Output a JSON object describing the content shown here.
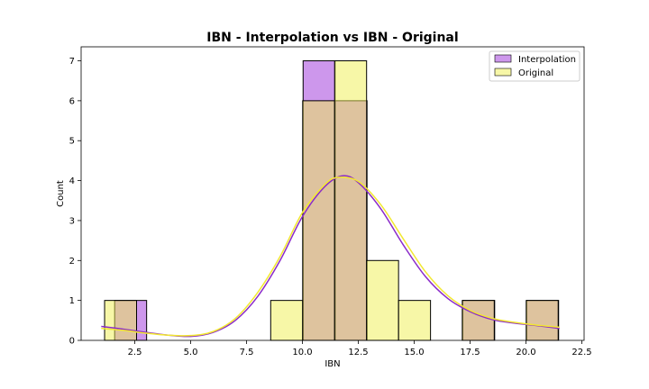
{
  "chart_data": {
    "type": "histogram",
    "title": "IBN - Interpolation vs IBN - Original",
    "xlabel": "IBN",
    "ylabel": "Count",
    "xlim": [
      0.1,
      22.6
    ],
    "ylim": [
      0,
      7.35
    ],
    "x_ticks": [
      2.5,
      5.0,
      7.5,
      10.0,
      12.5,
      15.0,
      17.5,
      20.0,
      22.5
    ],
    "y_ticks": [
      0,
      1,
      2,
      3,
      4,
      5,
      6,
      7
    ],
    "grid": false,
    "legend_position": "top-right",
    "series": [
      {
        "name": "Interpolation",
        "color": "#9b30d9",
        "kde_color": "#8a2bc9",
        "bins": [
          {
            "x0": 1.6,
            "x1": 3.03,
            "count": 1
          },
          {
            "x0": 10.03,
            "x1": 11.46,
            "count": 7
          },
          {
            "x0": 11.46,
            "x1": 12.89,
            "count": 6
          },
          {
            "x0": 17.17,
            "x1": 18.6,
            "count": 1
          },
          {
            "x0": 20.03,
            "x1": 21.46,
            "count": 1
          }
        ],
        "kde": [
          [
            1.0,
            0.35
          ],
          [
            2.0,
            0.28
          ],
          [
            3.0,
            0.2
          ],
          [
            4.0,
            0.13
          ],
          [
            5.0,
            0.1
          ],
          [
            6.0,
            0.2
          ],
          [
            7.0,
            0.5
          ],
          [
            8.0,
            1.1
          ],
          [
            9.0,
            2.0
          ],
          [
            10.0,
            3.1
          ],
          [
            11.0,
            3.85
          ],
          [
            11.8,
            4.12
          ],
          [
            12.5,
            3.95
          ],
          [
            13.5,
            3.3
          ],
          [
            14.5,
            2.4
          ],
          [
            15.5,
            1.6
          ],
          [
            16.5,
            1.05
          ],
          [
            17.5,
            0.72
          ],
          [
            18.5,
            0.52
          ],
          [
            19.5,
            0.43
          ],
          [
            20.5,
            0.37
          ],
          [
            21.5,
            0.3
          ]
        ]
      },
      {
        "name": "Original",
        "color": "#f0f050",
        "kde_color": "#f2e830",
        "bins": [
          {
            "x0": 1.15,
            "x1": 2.58,
            "count": 1
          },
          {
            "x0": 8.58,
            "x1": 10.01,
            "count": 1
          },
          {
            "x0": 10.01,
            "x1": 11.44,
            "count": 6
          },
          {
            "x0": 11.44,
            "x1": 12.87,
            "count": 7
          },
          {
            "x0": 12.87,
            "x1": 14.3,
            "count": 2
          },
          {
            "x0": 14.3,
            "x1": 15.73,
            "count": 1
          },
          {
            "x0": 17.15,
            "x1": 18.58,
            "count": 1
          },
          {
            "x0": 20.01,
            "x1": 21.44,
            "count": 1
          }
        ],
        "kde": [
          [
            1.0,
            0.3
          ],
          [
            2.0,
            0.25
          ],
          [
            3.0,
            0.18
          ],
          [
            4.0,
            0.13
          ],
          [
            5.0,
            0.12
          ],
          [
            6.0,
            0.22
          ],
          [
            7.0,
            0.55
          ],
          [
            8.0,
            1.2
          ],
          [
            9.0,
            2.1
          ],
          [
            10.0,
            3.2
          ],
          [
            11.0,
            3.9
          ],
          [
            11.6,
            4.08
          ],
          [
            12.5,
            3.98
          ],
          [
            13.5,
            3.4
          ],
          [
            14.5,
            2.55
          ],
          [
            15.5,
            1.72
          ],
          [
            16.5,
            1.12
          ],
          [
            17.5,
            0.75
          ],
          [
            18.5,
            0.55
          ],
          [
            19.5,
            0.45
          ],
          [
            20.5,
            0.38
          ],
          [
            21.5,
            0.33
          ]
        ]
      }
    ]
  }
}
